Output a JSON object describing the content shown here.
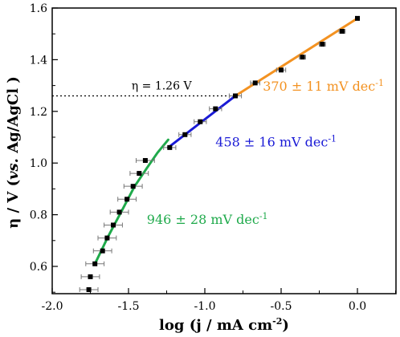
{
  "chart_data": {
    "type": "scatter",
    "xlabel": "log (j / mA cm",
    "xlabel_sup": "-2",
    "xlabel_close": ")",
    "ylabel_eta": "η / V (",
    "ylabel_vs": "vs.",
    "ylabel_rest": " Ag/AgCl )",
    "xlim": [
      -2.0,
      0.25
    ],
    "ylim": [
      0.5,
      1.6
    ],
    "xticks": [
      -2.0,
      -1.5,
      -1.0,
      -0.5,
      0.0
    ],
    "xtick_labels": [
      "-2.0",
      "-1.5",
      "-1.0",
      "-0.5",
      "0.0"
    ],
    "yticks": [
      0.6,
      0.8,
      1.0,
      1.2,
      1.4,
      1.6
    ],
    "ytick_labels": [
      "0.6",
      "0.8",
      "1.0",
      "1.2",
      "1.4",
      "1.6"
    ],
    "grid": false,
    "points": [
      {
        "x": -1.76,
        "y": 0.51,
        "xerr": 0.06
      },
      {
        "x": -1.75,
        "y": 0.56,
        "xerr": 0.06
      },
      {
        "x": -1.72,
        "y": 0.61,
        "xerr": 0.06
      },
      {
        "x": -1.67,
        "y": 0.66,
        "xerr": 0.06
      },
      {
        "x": -1.64,
        "y": 0.71,
        "xerr": 0.06
      },
      {
        "x": -1.6,
        "y": 0.76,
        "xerr": 0.06
      },
      {
        "x": -1.56,
        "y": 0.81,
        "xerr": 0.06
      },
      {
        "x": -1.51,
        "y": 0.86,
        "xerr": 0.06
      },
      {
        "x": -1.47,
        "y": 0.91,
        "xerr": 0.06
      },
      {
        "x": -1.43,
        "y": 0.96,
        "xerr": 0.06
      },
      {
        "x": -1.39,
        "y": 1.01,
        "xerr": 0.06
      },
      {
        "x": -1.23,
        "y": 1.06,
        "xerr": 0.04
      },
      {
        "x": -1.13,
        "y": 1.11,
        "xerr": 0.04
      },
      {
        "x": -1.03,
        "y": 1.16,
        "xerr": 0.04
      },
      {
        "x": -0.93,
        "y": 1.21,
        "xerr": 0.04
      },
      {
        "x": -0.8,
        "y": 1.26,
        "xerr": 0.04
      },
      {
        "x": -0.67,
        "y": 1.31,
        "xerr": 0.03
      },
      {
        "x": -0.5,
        "y": 1.36,
        "xerr": 0.03
      },
      {
        "x": -0.36,
        "y": 1.41,
        "xerr": 0.02
      },
      {
        "x": -0.23,
        "y": 1.46,
        "xerr": 0.02
      },
      {
        "x": -0.1,
        "y": 1.51,
        "xerr": 0.02
      },
      {
        "x": 0.0,
        "y": 1.56,
        "xerr": 0.01
      }
    ],
    "fits": [
      {
        "label": "946 ± 28 mV dec",
        "color": "#1faa4b",
        "x": [
          -1.72,
          -1.63,
          -1.54,
          -1.46,
          -1.38,
          -1.31,
          -1.24
        ],
        "y": [
          0.61,
          0.72,
          0.82,
          0.91,
          0.98,
          1.04,
          1.09
        ],
        "label_x": -1.38,
        "label_y": 0.765
      },
      {
        "label": "458 ± 16 mV dec",
        "color": "#1a1ad6",
        "x": [
          -1.24,
          -0.8
        ],
        "y": [
          1.06,
          1.26
        ],
        "label_x": -0.93,
        "label_y": 1.065
      },
      {
        "label": "370 ± 11 mV dec",
        "color": "#f39221",
        "x": [
          -0.8,
          0.0
        ],
        "y": [
          1.26,
          1.56
        ],
        "label_x": -0.62,
        "label_y": 1.28
      }
    ],
    "fit_label_sup": "-1",
    "threshold": {
      "y": 1.26,
      "x_end": -0.8,
      "label": "η = 1.26 V",
      "label_x": -1.48
    }
  }
}
